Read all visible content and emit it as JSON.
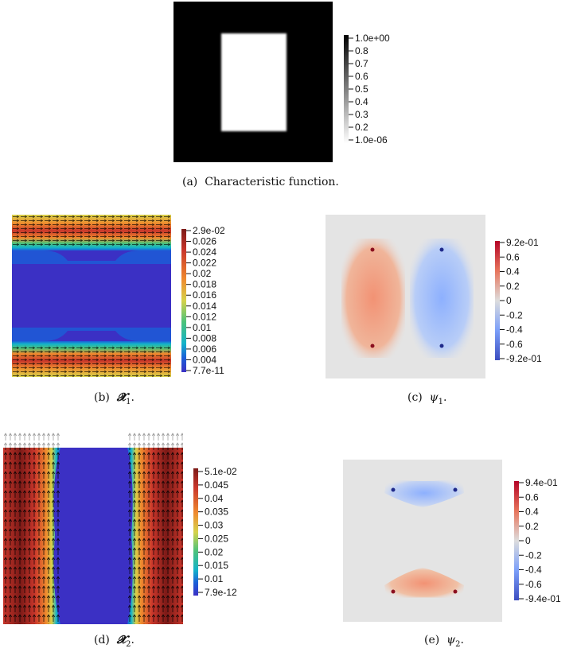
{
  "panels": {
    "a": {
      "caption_label": "(a)",
      "caption_text": "Characteristic function.",
      "colorbar": [
        "1.0e+00",
        "0.8",
        "0.7",
        "0.6",
        "0.5",
        "0.4",
        "0.3",
        "0.2",
        "1.0e-06"
      ]
    },
    "b": {
      "caption_label": "(b)",
      "caption_symbol": "𝓧",
      "caption_sub": "1",
      "caption_tail": ".",
      "colorbar": [
        "2.9e-02",
        "0.026",
        "0.024",
        "0.022",
        "0.02",
        "0.018",
        "0.016",
        "0.014",
        "0.012",
        "0.01",
        "0.008",
        "0.006",
        "0.004",
        "7.7e-11"
      ]
    },
    "c": {
      "caption_label": "(c)",
      "caption_symbol": "ψ",
      "caption_sub": "1",
      "caption_tail": ".",
      "colorbar": [
        "9.2e-01",
        "0.6",
        "0.4",
        "0.2",
        "0",
        "-0.2",
        "-0.4",
        "-0.6",
        "-9.2e-01"
      ]
    },
    "d": {
      "caption_label": "(d)",
      "caption_symbol": "𝓧",
      "caption_sub": "2",
      "caption_tail": ".",
      "colorbar": [
        "5.1e-02",
        "0.045",
        "0.04",
        "0.035",
        "0.03",
        "0.025",
        "0.02",
        "0.015",
        "0.01",
        "7.9e-12"
      ]
    },
    "e": {
      "caption_label": "(e)",
      "caption_symbol": "ψ",
      "caption_sub": "2",
      "caption_tail": ".",
      "colorbar": [
        "9.4e-01",
        "0.6",
        "0.4",
        "0.2",
        "0",
        "-0.2",
        "-0.4",
        "-0.6",
        "-9.4e-01"
      ]
    }
  },
  "colors": {
    "jet": [
      "#3b30c4",
      "#1b5fd8",
      "#13b3c9",
      "#4cc27a",
      "#d6d24a",
      "#ef8a2e",
      "#c9362b",
      "#7c1a17"
    ],
    "coolwarm_low": "#3b4cc0",
    "coolwarm_mid": "#dddddd",
    "coolwarm_high": "#b40426"
  }
}
